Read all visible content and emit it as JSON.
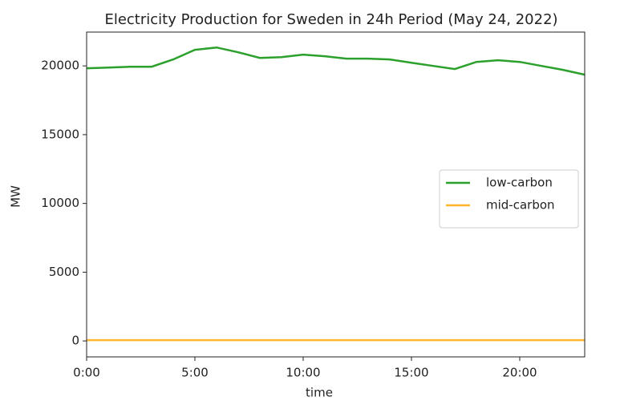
{
  "chart_data": {
    "type": "line",
    "title": "Electricity Production for Sweden in 24h Period (May 24, 2022)",
    "x_label": "time",
    "y_label": "MW",
    "x": [
      0,
      1,
      2,
      3,
      4,
      5,
      6,
      7,
      8,
      9,
      10,
      11,
      12,
      13,
      14,
      15,
      16,
      17,
      18,
      19,
      20,
      21,
      22,
      23
    ],
    "series": [
      {
        "name": "low-carbon",
        "color": "#2ca02c",
        "values": [
          19830,
          19880,
          19940,
          19940,
          20470,
          21170,
          21340,
          20990,
          20580,
          20640,
          20820,
          20700,
          20530,
          20530,
          20470,
          20230,
          20000,
          19770,
          20290,
          20410,
          20290,
          20000,
          19710,
          19360
        ]
      },
      {
        "name": "mid-carbon",
        "color": "#ffb52e",
        "values": [
          60,
          60,
          60,
          60,
          60,
          60,
          60,
          60,
          60,
          60,
          60,
          60,
          60,
          60,
          60,
          60,
          60,
          60,
          60,
          60,
          60,
          60,
          60,
          60
        ]
      }
    ],
    "xlim": [
      0,
      23
    ],
    "xticks": [
      {
        "value": 0,
        "label": "0:00"
      },
      {
        "value": 5,
        "label": "5:00"
      },
      {
        "value": 10,
        "label": "10:00"
      },
      {
        "value": 15,
        "label": "15:00"
      },
      {
        "value": 20,
        "label": "20:00"
      }
    ],
    "ylim": [
      -1160,
      22460
    ],
    "yticks": [
      0,
      5000,
      10000,
      15000,
      20000
    ],
    "legend_position": "right"
  }
}
